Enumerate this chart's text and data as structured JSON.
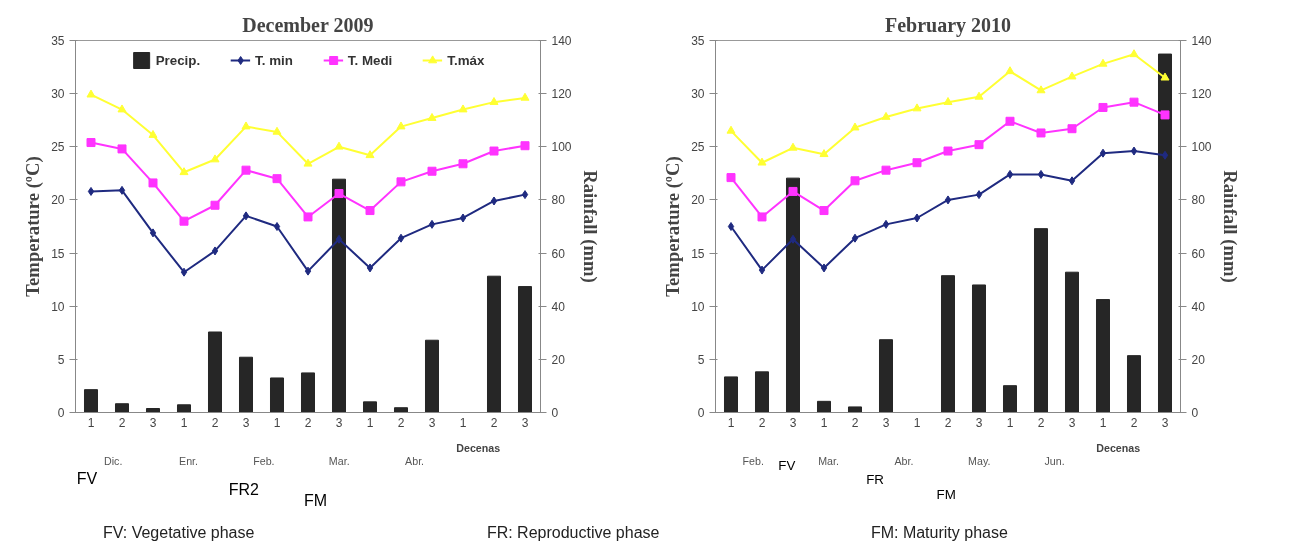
{
  "chart_data": [
    {
      "type": "line",
      "title": "December 2009",
      "ylabel": "Temperature (ºC)",
      "y2label": "Rainfall (mm)",
      "categories": [
        "1",
        "2",
        "3",
        "1",
        "2",
        "3",
        "1",
        "2",
        "3",
        "1",
        "2",
        "3",
        "1",
        "2",
        "3"
      ],
      "ylim": [
        0,
        35
      ],
      "yticks": [
        0,
        5,
        10,
        15,
        20,
        25,
        30,
        35
      ],
      "y2lim": [
        0,
        140
      ],
      "y2ticks": [
        0,
        20,
        40,
        60,
        80,
        100,
        120,
        140
      ],
      "legend": "top",
      "series": [
        {
          "name": "Precip.",
          "type": "bar",
          "axis": "y2",
          "color": "#262626",
          "values": [
            8.6,
            3.3,
            1.5,
            2.9,
            30.3,
            20.8,
            13.0,
            14.9,
            87.8,
            4.0,
            1.8,
            27.2,
            0,
            51.3,
            47.4
          ]
        },
        {
          "name": "T. min",
          "marker": "diamond",
          "color": "#1f2a80",
          "values": [
            20.8,
            20.9,
            16.9,
            13.2,
            15.2,
            18.5,
            17.5,
            13.3,
            16.3,
            13.6,
            16.4,
            17.7,
            18.3,
            19.9,
            20.5
          ]
        },
        {
          "name": "T. Medi",
          "marker": "square",
          "color": "#ff33ff",
          "values": [
            25.4,
            24.8,
            21.6,
            18.0,
            19.5,
            22.8,
            22.0,
            18.4,
            20.6,
            19.0,
            21.7,
            22.7,
            23.4,
            24.6,
            25.1
          ]
        },
        {
          "name": "T.máx",
          "marker": "triangle",
          "color": "#ffff33",
          "values": [
            29.9,
            28.5,
            26.1,
            22.6,
            23.8,
            26.9,
            26.4,
            23.4,
            25.0,
            24.2,
            26.9,
            27.7,
            28.5,
            29.2,
            29.6
          ]
        }
      ],
      "annotations": [
        "Decenas",
        "Dic.",
        "Enr.",
        "Feb.",
        "Mar.",
        "Abr.",
        "FV",
        "FR2",
        "FM",
        "FV: Vegetative phase",
        "FR: Reproductive phase",
        "FM: Maturity phase"
      ]
    },
    {
      "type": "line",
      "title": "February 2010",
      "ylabel": "Temperature (ºC)",
      "y2label": "Rainfall (mm)",
      "categories": [
        "1",
        "2",
        "3",
        "1",
        "2",
        "3",
        "1",
        "2",
        "3",
        "1",
        "2",
        "3",
        "1",
        "2",
        "3"
      ],
      "ylim": [
        0,
        35
      ],
      "yticks": [
        0,
        5,
        10,
        15,
        20,
        25,
        30,
        35
      ],
      "y2lim": [
        0,
        140
      ],
      "y2ticks": [
        0,
        20,
        40,
        60,
        80,
        100,
        120,
        140
      ],
      "series": [
        {
          "type": "bar",
          "axis": "y2",
          "color": "#262626",
          "values": [
            13.4,
            15.3,
            88.2,
            4.2,
            2.1,
            27.4,
            0,
            51.5,
            48.0,
            10.1,
            69.2,
            52.8,
            42.5,
            21.4,
            134.9
          ]
        },
        {
          "marker": "diamond",
          "color": "#1f2a80",
          "values": [
            17.5,
            13.4,
            16.3,
            13.6,
            16.4,
            17.7,
            18.3,
            20.0,
            20.5,
            22.4,
            22.4,
            21.8,
            24.4,
            24.6,
            24.2
          ]
        },
        {
          "marker": "square",
          "color": "#ff33ff",
          "values": [
            22.1,
            18.4,
            20.8,
            19.0,
            21.8,
            22.8,
            23.5,
            24.6,
            25.2,
            27.4,
            26.3,
            26.7,
            28.7,
            29.2,
            28.0
          ]
        },
        {
          "marker": "triangle",
          "color": "#ffff33",
          "values": [
            26.5,
            23.5,
            24.9,
            24.3,
            26.8,
            27.8,
            28.6,
            29.2,
            29.7,
            32.1,
            30.3,
            31.6,
            32.8,
            33.7,
            31.5
          ]
        }
      ],
      "annotations": [
        "Decenas",
        "Feb.",
        "Mar.",
        "Abr.",
        "May.",
        "Jun.",
        "FV",
        "FR",
        "FM"
      ]
    }
  ]
}
